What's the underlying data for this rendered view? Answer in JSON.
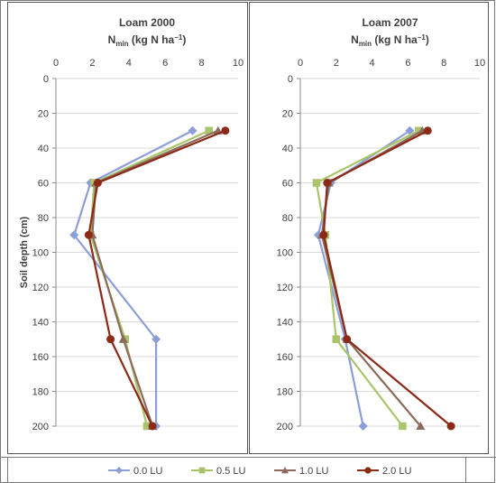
{
  "chart_data": [
    {
      "type": "line",
      "title": "Loam 2000",
      "xlabel_main": "N",
      "xlabel_sub": "min",
      "xlabel_rest": " (kg N ha",
      "xlabel_sup": "−1",
      "xlabel_end": ")",
      "ylabel": "Soil depth (cm)",
      "xlim": [
        0,
        10
      ],
      "ylim": [
        0,
        200
      ],
      "y_inverted": true,
      "x_axis_position": "top",
      "xticks": [
        "0",
        "2",
        "4",
        "6",
        "8",
        "10"
      ],
      "yticks": [
        "0",
        "20",
        "40",
        "60",
        "80",
        "100",
        "120",
        "140",
        "160",
        "180",
        "200"
      ],
      "depth": [
        30,
        60,
        90,
        150,
        200
      ],
      "series": [
        {
          "name": "0.0 LU",
          "color": "#8c9ed8",
          "marker": "diamond",
          "values": [
            7.5,
            1.9,
            1.0,
            5.5,
            5.5
          ]
        },
        {
          "name": "0.5 LU",
          "color": "#a9c46a",
          "marker": "square",
          "values": [
            8.4,
            2.1,
            1.9,
            3.8,
            5.0
          ]
        },
        {
          "name": "1.0 LU",
          "color": "#8c6a5c",
          "marker": "triangle",
          "values": [
            8.9,
            2.2,
            2.0,
            3.7,
            5.3
          ]
        },
        {
          "name": "2.0 LU",
          "color": "#8b2a16",
          "marker": "circle",
          "values": [
            9.3,
            2.3,
            1.8,
            3.0,
            5.3
          ]
        }
      ]
    },
    {
      "type": "line",
      "title": "Loam 2007",
      "xlabel_main": "N",
      "xlabel_sub": "min",
      "xlabel_rest": " (kg N ha",
      "xlabel_sup": "−1",
      "xlabel_end": ")",
      "ylabel": "",
      "xlim": [
        0,
        10
      ],
      "ylim": [
        0,
        200
      ],
      "y_inverted": true,
      "x_axis_position": "top",
      "xticks": [
        "0",
        "2",
        "4",
        "6",
        "8",
        "10"
      ],
      "yticks": [
        "0",
        "20",
        "40",
        "60",
        "80",
        "100",
        "120",
        "140",
        "160",
        "180",
        "200"
      ],
      "depth": [
        30,
        60,
        90,
        150,
        200
      ],
      "series": [
        {
          "name": "0.0 LU",
          "color": "#8c9ed8",
          "marker": "diamond",
          "values": [
            6.1,
            1.7,
            1.0,
            2.5,
            3.5
          ]
        },
        {
          "name": "0.5 LU",
          "color": "#a9c46a",
          "marker": "square",
          "values": [
            6.6,
            0.9,
            1.4,
            2.0,
            5.7
          ]
        },
        {
          "name": "1.0 LU",
          "color": "#8c6a5c",
          "marker": "triangle",
          "values": [
            6.8,
            1.6,
            1.2,
            2.6,
            6.7
          ]
        },
        {
          "name": "2.0 LU",
          "color": "#8b2a16",
          "marker": "circle",
          "values": [
            7.1,
            1.5,
            1.3,
            2.6,
            8.4
          ]
        }
      ]
    }
  ],
  "legend": {
    "position": "bottom",
    "items": [
      {
        "label": "0.0 LU",
        "color": "#8c9ed8",
        "marker": "diamond"
      },
      {
        "label": "0.5 LU",
        "color": "#a9c46a",
        "marker": "square"
      },
      {
        "label": "1.0 LU",
        "color": "#8c6a5c",
        "marker": "triangle"
      },
      {
        "label": "2.0 LU",
        "color": "#8b2a16",
        "marker": "circle"
      }
    ]
  }
}
